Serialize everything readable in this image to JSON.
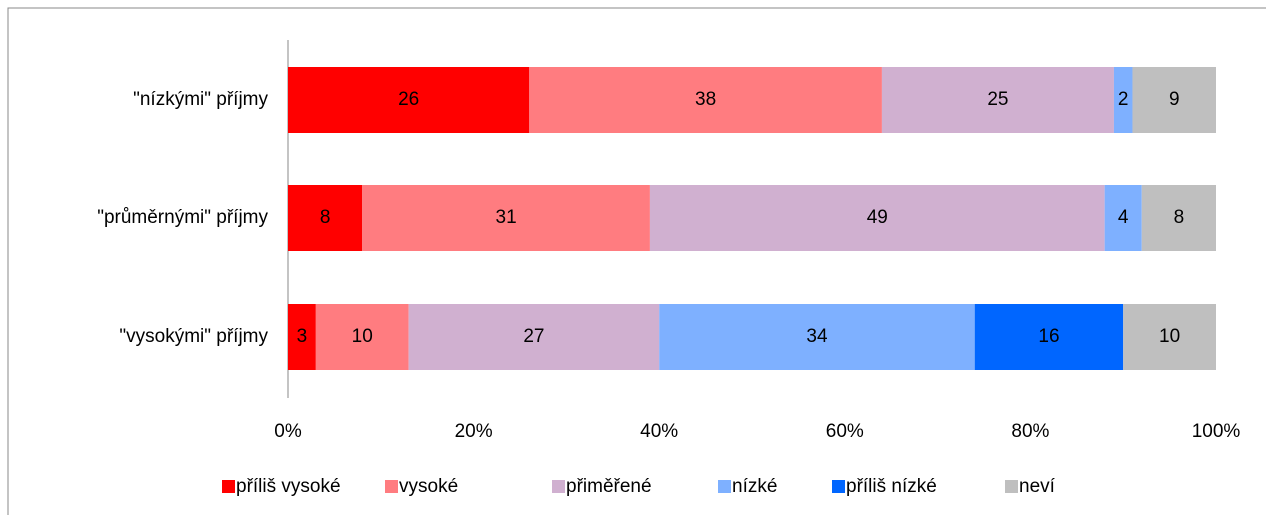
{
  "chart_data": {
    "type": "stacked-bar-horizontal",
    "categories": [
      "\"nízkými\" příjmy",
      "\"průměrnými\" příjmy",
      "\"vysokými\" příjmy"
    ],
    "series": [
      {
        "name": "příliš vysoké",
        "color": "#ff0000",
        "values": [
          26,
          8,
          3
        ]
      },
      {
        "name": "vysoké",
        "color": "#ff7c80",
        "values": [
          38,
          31,
          10
        ]
      },
      {
        "name": "přiměřené",
        "color": "#d0b0d0",
        "values": [
          25,
          49,
          27
        ]
      },
      {
        "name": "nízké",
        "color": "#7eb0ff",
        "values": [
          2,
          4,
          34
        ]
      },
      {
        "name": "příliš nízké",
        "color": "#0066ff",
        "values": [
          null,
          null,
          16
        ]
      },
      {
        "name": "neví",
        "color": "#bfbfbf",
        "values": [
          9,
          8,
          10
        ]
      }
    ],
    "xlim": [
      0,
      100
    ],
    "xticks": [
      {
        "value": 0,
        "label": "0%"
      },
      {
        "value": 20,
        "label": "20%"
      },
      {
        "value": 40,
        "label": "40%"
      },
      {
        "value": 60,
        "label": "60%"
      },
      {
        "value": 80,
        "label": "80%"
      },
      {
        "value": 100,
        "label": "100%"
      }
    ],
    "legend": "bottom"
  }
}
